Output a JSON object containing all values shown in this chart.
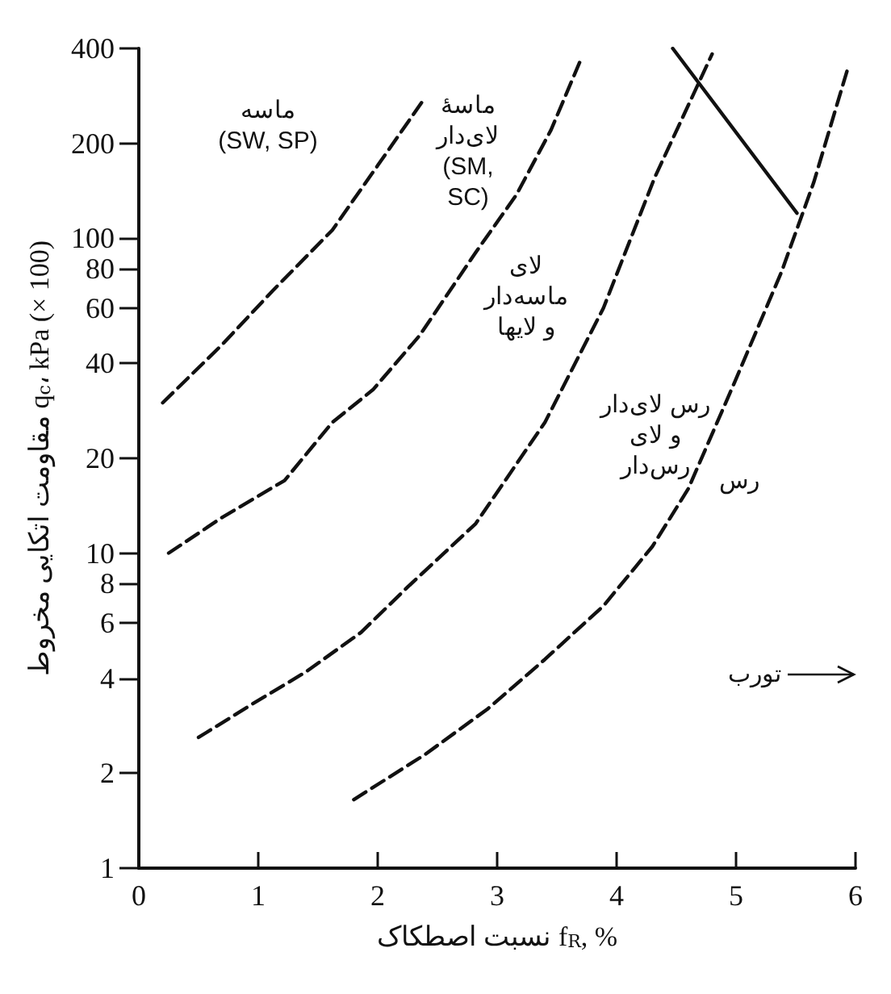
{
  "chart_data": {
    "type": "line",
    "xlabel": "نسبت اصطکاک f$_{R}$, %",
    "ylabel": "مقاومت اتکایی مخروط q$_{c}$، kPa (× 100)",
    "log": "y",
    "xlim": [
      0,
      6
    ],
    "xticks": [
      0,
      1,
      2,
      3,
      4,
      5,
      6
    ],
    "ylim": [
      1,
      400
    ],
    "yticks": [
      1,
      2,
      4,
      6,
      8,
      10,
      20,
      40,
      60,
      80,
      100,
      200,
      400
    ],
    "grid": false,
    "marker": "none",
    "series": [
      {
        "color": "#111111",
        "line_style": "dashed",
        "x": [
          0.2,
          0.7,
          1.12,
          1.62,
          2.0,
          2.39
        ],
        "values": [
          30,
          46,
          68,
          106,
          170,
          277
        ]
      },
      {
        "color": "#111111",
        "line_style": "dashed",
        "x": [
          0.25,
          0.7,
          1.22,
          1.62,
          1.96,
          2.35,
          2.82,
          3.16,
          3.45,
          3.71
        ],
        "values": [
          10,
          13,
          17,
          26,
          33,
          49,
          90,
          137,
          220,
          376
        ]
      },
      {
        "color": "#111111",
        "line_style": "dashed",
        "x": [
          0.5,
          0.94,
          1.4,
          1.86,
          2.25,
          2.82,
          3.4,
          3.89,
          4.32,
          4.8
        ],
        "values": [
          2.6,
          3.3,
          4.2,
          5.6,
          7.8,
          12.4,
          26,
          60,
          156,
          384
        ]
      },
      {
        "color": "#111111",
        "line_style": "dashed",
        "x": [
          1.8,
          2.4,
          2.92,
          3.4,
          3.89,
          4.3,
          4.6,
          4.99,
          5.38,
          5.65,
          5.93
        ],
        "values": [
          1.65,
          2.3,
          3.2,
          4.6,
          6.8,
          10.5,
          16,
          35,
          78,
          150,
          340
        ]
      },
      {
        "color": "#111111",
        "line_style": "solid",
        "x": [
          4.47,
          5.51
        ],
        "values": [
          400,
          120
        ]
      }
    ],
    "annotations": [
      "ماسه\n(SW, SP)",
      "ماسهٔ\nلای‌دار\n(SM,\nSC)",
      "لای\nماسه‌دار\nو لایها",
      "رس لای‌دار\nو لای\nرس‌دار",
      "رس",
      "تورب"
    ]
  }
}
